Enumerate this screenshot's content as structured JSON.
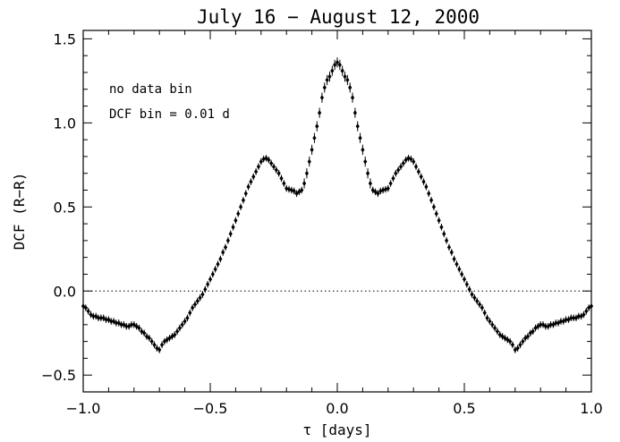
{
  "chart_data": {
    "type": "scatter",
    "title": "July 16 − August 12, 2000",
    "xlabel": "τ [days]",
    "ylabel": "DCF (R−R)",
    "xlim": [
      -1.0,
      1.0
    ],
    "ylim": [
      -0.6,
      1.55
    ],
    "xticks": [
      -1.0,
      -0.5,
      0.0,
      0.5,
      1.0
    ],
    "xtick_labels": [
      "−1.0",
      "−0.5",
      "0.0",
      "0.5",
      "1.0"
    ],
    "yticks": [
      -0.5,
      0.0,
      0.5,
      1.0,
      1.5
    ],
    "ytick_labels": [
      "−0.5",
      "0.0",
      "0.5",
      "1.0",
      "1.5"
    ],
    "reference_line": {
      "y": 0.0,
      "style": "dotted"
    },
    "annotations": [
      "no data bin",
      "DCF bin = 0.01 d"
    ],
    "grid": false,
    "marker": "diamond",
    "error_bars": "vertical",
    "colors": {
      "points": "#000000",
      "axes": "#000000"
    },
    "points": [
      [
        0.0,
        1.36,
        0.03
      ],
      [
        0.01,
        1.345,
        0.03
      ],
      [
        0.02,
        1.31,
        0.03
      ],
      [
        0.03,
        1.275,
        0.03
      ],
      [
        0.04,
        1.255,
        0.03
      ],
      [
        0.05,
        1.21,
        0.03
      ],
      [
        0.06,
        1.15,
        0.03
      ],
      [
        0.07,
        1.06,
        0.03
      ],
      [
        0.08,
        0.98,
        0.03
      ],
      [
        0.09,
        0.91,
        0.03
      ],
      [
        0.1,
        0.84,
        0.03
      ],
      [
        0.11,
        0.77,
        0.03
      ],
      [
        0.12,
        0.7,
        0.03
      ],
      [
        0.13,
        0.64,
        0.03
      ],
      [
        0.14,
        0.6,
        0.02
      ],
      [
        0.15,
        0.59,
        0.02
      ],
      [
        0.16,
        0.58,
        0.02
      ],
      [
        0.17,
        0.595,
        0.02
      ],
      [
        0.18,
        0.6,
        0.02
      ],
      [
        0.19,
        0.605,
        0.02
      ],
      [
        0.2,
        0.61,
        0.02
      ],
      [
        0.21,
        0.64,
        0.02
      ],
      [
        0.22,
        0.67,
        0.02
      ],
      [
        0.23,
        0.7,
        0.02
      ],
      [
        0.24,
        0.72,
        0.02
      ],
      [
        0.25,
        0.74,
        0.02
      ],
      [
        0.26,
        0.76,
        0.02
      ],
      [
        0.27,
        0.78,
        0.02
      ],
      [
        0.28,
        0.79,
        0.02
      ],
      [
        0.29,
        0.785,
        0.02
      ],
      [
        0.3,
        0.77,
        0.02
      ],
      [
        0.31,
        0.74,
        0.02
      ],
      [
        0.32,
        0.71,
        0.02
      ],
      [
        0.33,
        0.68,
        0.02
      ],
      [
        0.34,
        0.65,
        0.02
      ],
      [
        0.35,
        0.62,
        0.02
      ],
      [
        0.36,
        0.58,
        0.02
      ],
      [
        0.37,
        0.54,
        0.02
      ],
      [
        0.38,
        0.5,
        0.02
      ],
      [
        0.39,
        0.46,
        0.02
      ],
      [
        0.4,
        0.42,
        0.02
      ],
      [
        0.41,
        0.38,
        0.02
      ],
      [
        0.42,
        0.34,
        0.02
      ],
      [
        0.43,
        0.3,
        0.02
      ],
      [
        0.44,
        0.26,
        0.02
      ],
      [
        0.45,
        0.23,
        0.02
      ],
      [
        0.46,
        0.19,
        0.02
      ],
      [
        0.47,
        0.16,
        0.02
      ],
      [
        0.48,
        0.13,
        0.02
      ],
      [
        0.49,
        0.1,
        0.02
      ],
      [
        0.5,
        0.07,
        0.02
      ],
      [
        0.51,
        0.04,
        0.02
      ],
      [
        0.52,
        0.01,
        0.02
      ],
      [
        0.53,
        -0.02,
        0.02
      ],
      [
        0.54,
        -0.04,
        0.02
      ],
      [
        0.55,
        -0.06,
        0.02
      ],
      [
        0.56,
        -0.08,
        0.02
      ],
      [
        0.57,
        -0.1,
        0.02
      ],
      [
        0.58,
        -0.13,
        0.02
      ],
      [
        0.59,
        -0.16,
        0.02
      ],
      [
        0.6,
        -0.18,
        0.02
      ],
      [
        0.61,
        -0.2,
        0.02
      ],
      [
        0.62,
        -0.22,
        0.02
      ],
      [
        0.63,
        -0.24,
        0.02
      ],
      [
        0.64,
        -0.26,
        0.02
      ],
      [
        0.65,
        -0.27,
        0.02
      ],
      [
        0.66,
        -0.28,
        0.02
      ],
      [
        0.67,
        -0.29,
        0.02
      ],
      [
        0.68,
        -0.3,
        0.02
      ],
      [
        0.69,
        -0.32,
        0.02
      ],
      [
        0.7,
        -0.35,
        0.02
      ],
      [
        0.71,
        -0.34,
        0.02
      ],
      [
        0.72,
        -0.32,
        0.02
      ],
      [
        0.73,
        -0.3,
        0.02
      ],
      [
        0.74,
        -0.28,
        0.02
      ],
      [
        0.75,
        -0.27,
        0.02
      ],
      [
        0.76,
        -0.25,
        0.02
      ],
      [
        0.77,
        -0.24,
        0.02
      ],
      [
        0.78,
        -0.22,
        0.02
      ],
      [
        0.79,
        -0.21,
        0.02
      ],
      [
        0.8,
        -0.2,
        0.02
      ],
      [
        0.81,
        -0.2,
        0.02
      ],
      [
        0.82,
        -0.21,
        0.02
      ],
      [
        0.83,
        -0.21,
        0.02
      ],
      [
        0.84,
        -0.2,
        0.02
      ],
      [
        0.85,
        -0.2,
        0.02
      ],
      [
        0.86,
        -0.19,
        0.02
      ],
      [
        0.87,
        -0.19,
        0.02
      ],
      [
        0.88,
        -0.18,
        0.02
      ],
      [
        0.89,
        -0.18,
        0.02
      ],
      [
        0.9,
        -0.17,
        0.02
      ],
      [
        0.91,
        -0.17,
        0.02
      ],
      [
        0.92,
        -0.16,
        0.02
      ],
      [
        0.93,
        -0.16,
        0.02
      ],
      [
        0.94,
        -0.16,
        0.02
      ],
      [
        0.95,
        -0.15,
        0.02
      ],
      [
        0.96,
        -0.15,
        0.02
      ],
      [
        0.97,
        -0.14,
        0.02
      ],
      [
        0.98,
        -0.12,
        0.02
      ],
      [
        0.99,
        -0.1,
        0.02
      ]
    ]
  }
}
